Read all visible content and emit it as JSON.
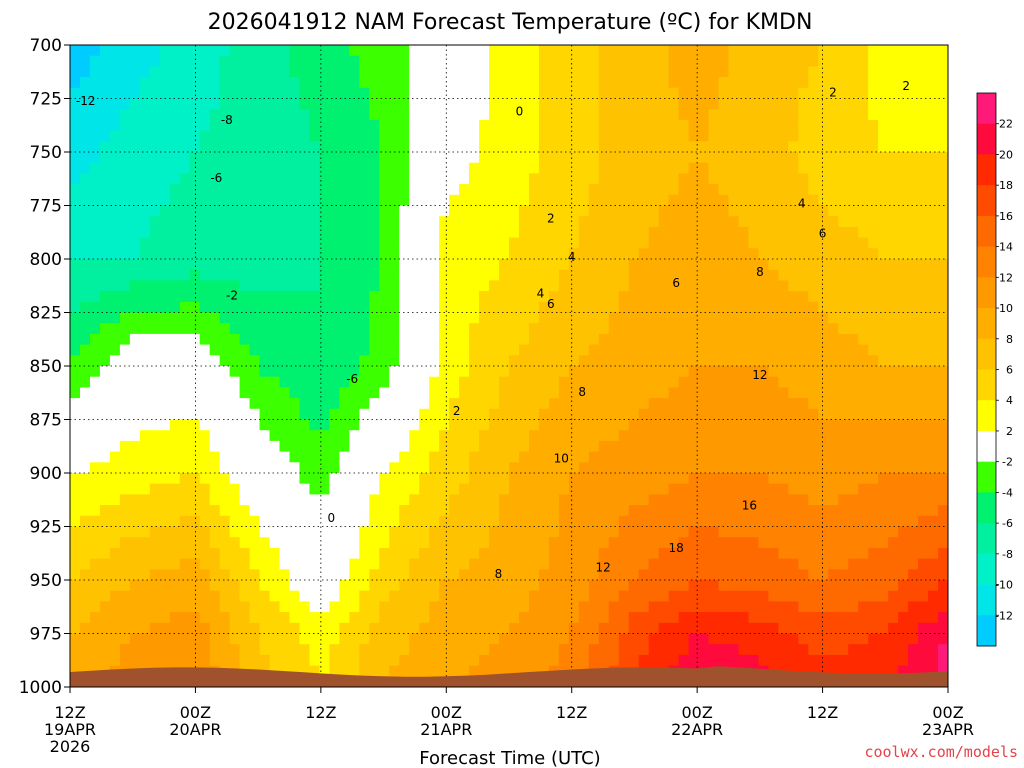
{
  "chart_data": {
    "type": "heatmap",
    "title": "2026041912 NAM Forecast Temperature (ºC) for KMDN",
    "xlabel": "Forecast Time (UTC)",
    "ylabel": "",
    "y_axis": {
      "range": [
        700,
        1000
      ],
      "inverted": true,
      "ticks": [
        700,
        725,
        750,
        775,
        800,
        825,
        850,
        875,
        900,
        925,
        950,
        975,
        1000
      ]
    },
    "x_axis": {
      "range_hours": [
        0,
        84
      ],
      "ticks": [
        {
          "hour": 0,
          "line1": "12Z",
          "line2": "19APR",
          "line3": "2026"
        },
        {
          "hour": 12,
          "line1": "00Z",
          "line2": "20APR",
          "line3": ""
        },
        {
          "hour": 24,
          "line1": "12Z",
          "line2": "",
          "line3": ""
        },
        {
          "hour": 36,
          "line1": "00Z",
          "line2": "21APR",
          "line3": ""
        },
        {
          "hour": 48,
          "line1": "12Z",
          "line2": "",
          "line3": ""
        },
        {
          "hour": 60,
          "line1": "00Z",
          "line2": "22APR",
          "line3": ""
        },
        {
          "hour": 72,
          "line1": "12Z",
          "line2": "",
          "line3": ""
        },
        {
          "hour": 84,
          "line1": "00Z",
          "line2": "23APR",
          "line3": ""
        }
      ]
    },
    "grid": true,
    "legend": "right",
    "colorbar": {
      "labels": [
        22,
        20,
        18,
        16,
        14,
        12,
        10,
        8,
        6,
        4,
        2,
        -2,
        -4,
        -6,
        -8,
        -10,
        -12
      ],
      "colors": [
        "#ff1a7a",
        "#ff0a3c",
        "#ff2a00",
        "#ff4b00",
        "#ff6a00",
        "#ff8200",
        "#ff9900",
        "#ffae00",
        "#ffc200",
        "#ffd600",
        "#ffff00",
        "#ffffff",
        "#3cff00",
        "#00f070",
        "#00f0a0",
        "#00f0c8",
        "#00e6e8",
        "#00ccff"
      ]
    },
    "temperature_grid": {
      "times": [
        0,
        6,
        12,
        18,
        24,
        30,
        36,
        42,
        48,
        54,
        60,
        66,
        72,
        78,
        84
      ],
      "levels": [
        700,
        750,
        800,
        850,
        900,
        950,
        975,
        1000
      ],
      "values": [
        [
          -13,
          -11,
          -9,
          -7,
          -5,
          -3,
          -1,
          3,
          5,
          7,
          9,
          7,
          6,
          3,
          3
        ],
        [
          -11,
          -9,
          -8,
          -7,
          -6,
          -4,
          1,
          3,
          5,
          7,
          8,
          7,
          5,
          4,
          4
        ],
        [
          -8,
          -8,
          -7,
          -7,
          -6,
          -4,
          3,
          4,
          6,
          8,
          9,
          8,
          7,
          6,
          6
        ],
        [
          -4,
          0,
          0,
          -4,
          -6,
          -3,
          3,
          6,
          8,
          9,
          10,
          10,
          9,
          8,
          8
        ],
        [
          2,
          3,
          4,
          0,
          -3,
          2,
          5,
          8,
          10,
          11,
          12,
          12,
          11,
          12,
          12
        ],
        [
          6,
          8,
          9,
          4,
          0,
          5,
          8,
          9,
          11,
          14,
          16,
          15,
          14,
          15,
          18
        ],
        [
          8,
          10,
          11,
          6,
          3,
          7,
          9,
          10,
          12,
          17,
          20,
          19,
          17,
          18,
          22
        ],
        [
          9,
          11,
          12,
          7,
          4,
          8,
          10,
          11,
          13,
          18,
          22,
          21,
          19,
          20,
          23
        ]
      ]
    },
    "contour_labels": [
      "-12",
      "-8",
      "-6",
      "-2",
      "-6",
      "0",
      "0",
      "2",
      "2",
      "2",
      "4",
      "4",
      "4",
      "6",
      "6",
      "6",
      "8",
      "8",
      "8",
      "10",
      "12",
      "12",
      "16",
      "18",
      "2"
    ],
    "credit": "coolwx.com/models"
  }
}
